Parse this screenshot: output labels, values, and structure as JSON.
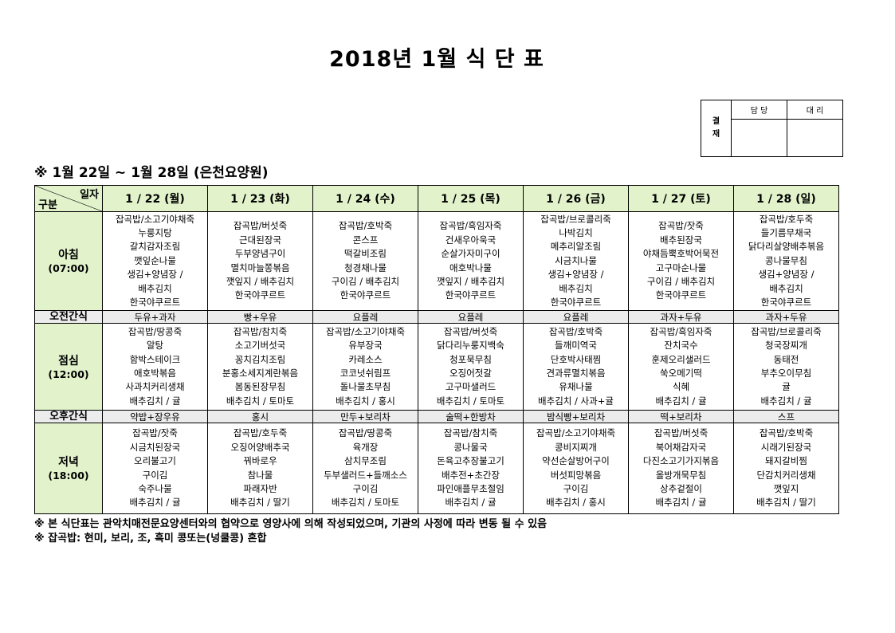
{
  "title": "2018년 1월 식 단 표",
  "approval": {
    "side_label": "결\n재",
    "col1": "담 당",
    "col2": "대 리"
  },
  "subtitle": "※ 1월 22일 ~ 1월 28일 (은천요양원)",
  "table": {
    "corner_top": "일자",
    "corner_bottom": "구분",
    "days": [
      "1 / 22 (월)",
      "1 / 23 (화)",
      "1 / 24 (수)",
      "1 / 25 (목)",
      "1 / 26 (금)",
      "1 / 27 (토)",
      "1 / 28 (일)"
    ],
    "rows": [
      {
        "type": "meal",
        "label": "아침",
        "time": "(07:00)",
        "cells": [
          [
            "잡곡밥/소고기야채죽",
            "누룽지탕",
            "갈치감자조림",
            "깻잎순나물",
            "생김+양념장 /",
            "배추김치",
            "한국야쿠르트"
          ],
          [
            "잡곡밥/버섯죽",
            "근대된장국",
            "두부양념구이",
            "멸치마늘쫑볶음",
            "깻잎지 / 배추김치",
            "한국야쿠르트"
          ],
          [
            "잡곡밥/호박죽",
            "콘스프",
            "떡갈비조림",
            "청경채나물",
            "구이김 / 배추김치",
            "한국야쿠르트"
          ],
          [
            "잡곡밥/흑임자죽",
            "건새우아욱국",
            "순살가자미구이",
            "애호박나물",
            "깻잎지 / 배추김치",
            "한국야쿠르트"
          ],
          [
            "잡곡밥/브로콜리죽",
            "나박김치",
            "메추리알조림",
            "시금치나물",
            "생김+양념장 /",
            "배추김치",
            "한국야쿠르트"
          ],
          [
            "잡곡밥/잣죽",
            "배추된장국",
            "야채듬뿍호박어묵전",
            "고구마순나물",
            "구이김 / 배추김치",
            "한국야쿠르트"
          ],
          [
            "잡곡밥/호두죽",
            "들기름무채국",
            "닭다리살양배추볶음",
            "콩나물무침",
            "생김+양념장 /",
            "배추김치",
            "한국야쿠르트"
          ]
        ]
      },
      {
        "type": "snack",
        "label": "오전간식",
        "cells": [
          "두유+과자",
          "빵+우유",
          "요플레",
          "요플레",
          "요플레",
          "과자+두유",
          "과자+두유"
        ]
      },
      {
        "type": "meal",
        "label": "점심",
        "time": "(12:00)",
        "cells": [
          [
            "잡곡밥/땅콩죽",
            "알탕",
            "함박스테이크",
            "애호박볶음",
            "사과치커리생채",
            "배추김치 / 귤"
          ],
          [
            "잡곡밥/참치죽",
            "소고기버섯국",
            "꽁치김치조림",
            "분홍소세지계란볶음",
            "봄동된장무침",
            "배추김치 / 토마토"
          ],
          [
            "잡곡밥/소고기야채죽",
            "유부장국",
            "카레소스",
            "코코넛쉬림프",
            "돌나물초무침",
            "배추김치 / 홍시"
          ],
          [
            "잡곡밥/버섯죽",
            "닭다리누룽지백숙",
            "청포묵무침",
            "오징어젓갈",
            "고구마샐러드",
            "배추김치 / 토마토"
          ],
          [
            "잡곡밥/호박죽",
            "들깨미역국",
            "단호박사태찜",
            "견과류멸치볶음",
            "유채나물",
            "배추김치 / 사과+귤"
          ],
          [
            "잡곡밥/흑임자죽",
            "잔치국수",
            "훈제오리샐러드",
            "쑥오메기떡",
            "식혜",
            "배추김치 / 귤"
          ],
          [
            "잡곡밥/브로콜리죽",
            "청국장찌개",
            "동태전",
            "부추오이무침",
            "귤",
            "배추김치 / 귤"
          ]
        ]
      },
      {
        "type": "snack",
        "label": "오후간식",
        "cells": [
          "약밥+장우유",
          "홍시",
          "만두+보리차",
          "술떡+한방차",
          "밤식빵+보리차",
          "떡+보리차",
          "스프"
        ]
      },
      {
        "type": "meal",
        "label": "저녁",
        "time": "(18:00)",
        "cells": [
          [
            "잡곡밥/잣죽",
            "시금치된장국",
            "오리불고기",
            "구이김",
            "숙주나물",
            "배추김치 / 귤"
          ],
          [
            "잡곡밥/호두죽",
            "오징어양배추국",
            "꿔바로우",
            "참나물",
            "파래자반",
            "배추김치 / 딸기"
          ],
          [
            "잡곡밥/땅콩죽",
            "육개장",
            "삼치무조림",
            "두부샐러드+들깨소스",
            "구이김",
            "배추김치 / 토마토"
          ],
          [
            "잡곡밥/참치죽",
            "콩나물국",
            "돈육고추장불고기",
            "배추전+초간장",
            "파인애플무초절임",
            "배추김치 / 귤"
          ],
          [
            "잡곡밥/소고기야채죽",
            "콩비지찌개",
            "약선순살방어구이",
            "버섯피망볶음",
            "구이김",
            "배추김치 / 홍시"
          ],
          [
            "잡곡밥/버섯죽",
            "북어채감자국",
            "다진소고기가지볶음",
            "올방개묵무침",
            "상추겉절이",
            "배추김치 / 귤"
          ],
          [
            "잡곡밥/호박죽",
            "시래기된장국",
            "돼지갈비찜",
            "단감치커리생채",
            "깻잎지",
            "배추김치 / 딸기"
          ]
        ]
      }
    ]
  },
  "notes": [
    "※ 본 식단표는 관악치매전문요양센터와의 협약으로 영양사에 의해 작성되었으며, 기관의 사정에 따라 변동 될 수 있음",
    "※ 잡곡밥: 현미, 보리, 조, 흑미 콩또는(넝쿨콩) 혼합"
  ],
  "colors": {
    "label_bg": "#e2f3cc",
    "snack_bg": "#ececec"
  }
}
